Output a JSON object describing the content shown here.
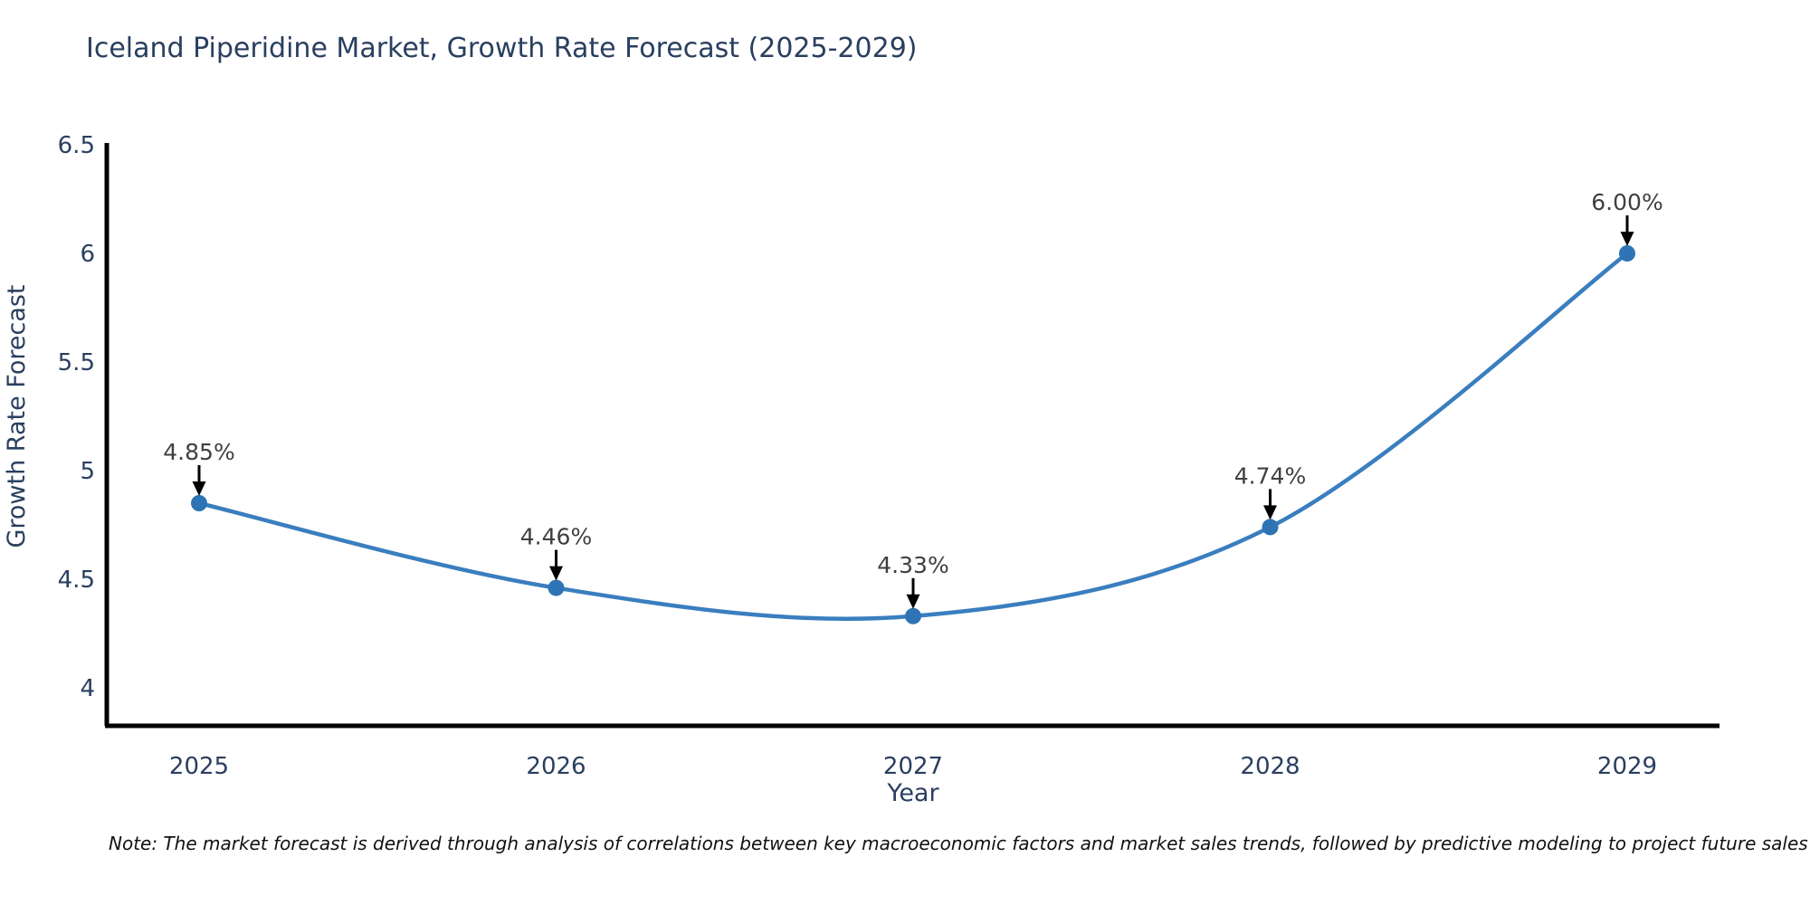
{
  "title": "Iceland Piperidine Market, Growth Rate Forecast (2025-2029)",
  "note": "Note: The market forecast is derived through analysis of correlations between key macroeconomic factors and market sales trends, followed by predictive modeling to project future sales",
  "chart_data": {
    "type": "line",
    "title": "Iceland Piperidine Market, Growth Rate Forecast (2025-2029)",
    "xlabel": "Year",
    "ylabel": "Growth Rate Forecast",
    "categories": [
      "2025",
      "2026",
      "2027",
      "2028",
      "2029"
    ],
    "values": [
      4.85,
      4.46,
      4.33,
      4.74,
      6.0
    ],
    "point_labels": [
      "4.85%",
      "4.46%",
      "4.33%",
      "4.74%",
      "6.00%"
    ],
    "ytick_values": [
      4,
      4.5,
      5,
      5.5,
      6,
      6.5
    ],
    "ytick_labels": [
      "4",
      "4.5",
      "5",
      "5.5",
      "6",
      "6.5"
    ],
    "ylim": [
      3.82,
      6.52
    ],
    "grid": false,
    "legend_position": "none",
    "colors": {
      "line": "#3a7ebf",
      "marker": "#2e74b5",
      "axis": "#000000",
      "tick_text": "#2a3f5f",
      "annotation_text": "#404040",
      "annotation_arrow": "#000000"
    }
  }
}
